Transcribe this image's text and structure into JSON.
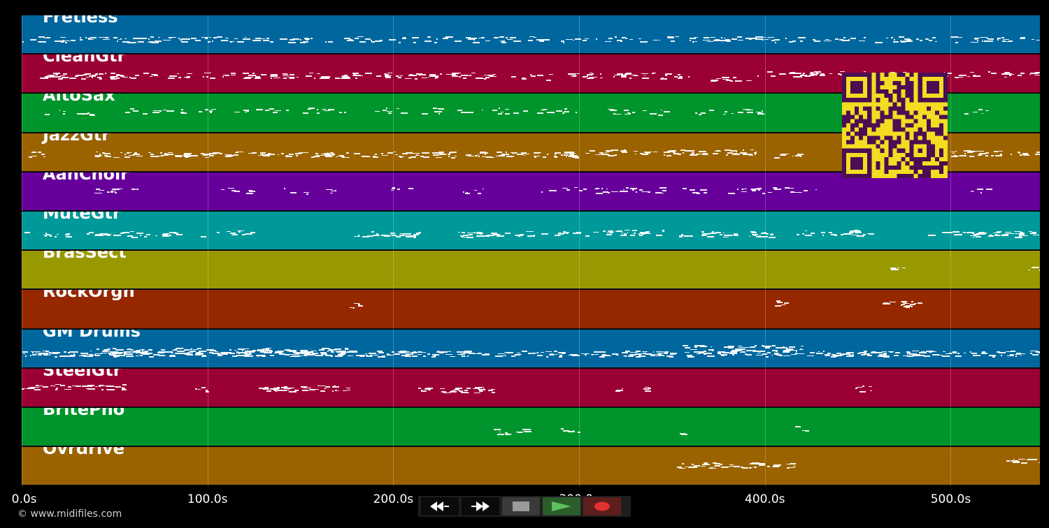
{
  "tracks": [
    {
      "name": "Fretless",
      "color": "#00679e"
    },
    {
      "name": "CleanGtr",
      "color": "#9b0034"
    },
    {
      "name": "AltoSax",
      "color": "#00952c"
    },
    {
      "name": "JazzGtr",
      "color": "#9a6300"
    },
    {
      "name": "AahChoir",
      "color": "#67009b"
    },
    {
      "name": "MuteGtr",
      "color": "#00999a"
    },
    {
      "name": "BrasSect",
      "color": "#989900"
    },
    {
      "name": "RockOrgn",
      "color": "#962800"
    },
    {
      "name": "GM Drums",
      "color": "#00679e"
    },
    {
      "name": "SteelGtr",
      "color": "#9b0034"
    },
    {
      "name": "BritePno",
      "color": "#00952c"
    },
    {
      "name": "Ovrdrive",
      "color": "#9a6300"
    }
  ],
  "timeline": {
    "max_seconds": 548,
    "ticks": [
      {
        "value": 0,
        "label": "0.0s"
      },
      {
        "value": 100,
        "label": "100.0s"
      },
      {
        "value": 200,
        "label": "200.0s"
      },
      {
        "value": 300,
        "label": "300.0s"
      },
      {
        "value": 400,
        "label": "400.0s"
      },
      {
        "value": 500,
        "label": "500.0s"
      }
    ]
  },
  "footer": {
    "copyright": "© www.midifiles.com"
  },
  "transport": {
    "rewind_icon": "rewind-icon",
    "fast_forward_icon": "fast-forward-icon",
    "stop_icon": "stop-icon",
    "play_icon": "play-icon",
    "record_icon": "record-icon",
    "play_color": "#5ec05e",
    "record_color": "#e03030"
  }
}
